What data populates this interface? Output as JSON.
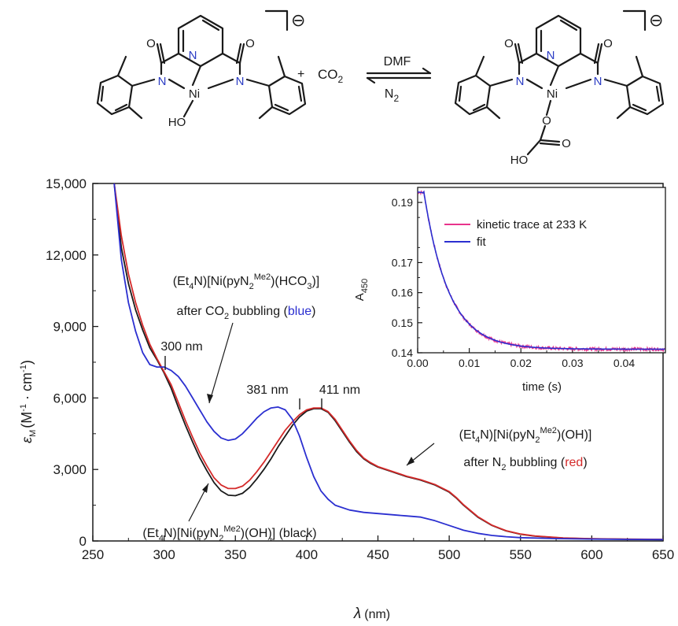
{
  "scheme": {
    "left_label": "HO",
    "left_metal": "Ni",
    "right_metal": "Ni",
    "right_o": "O",
    "right_ho": "HO",
    "right_carbonyl_o": "O",
    "n_label": "N",
    "o_label": "O",
    "charge": "⊖",
    "plus": "+",
    "co2_main": "CO",
    "co2_sub": "2",
    "arrow_top": "DMF",
    "arrow_bottom_main": "N",
    "arrow_bottom_sub": "2"
  },
  "colors": {
    "black": "#1a1a1a",
    "red": "#d42a2a",
    "blue": "#2b2fd0",
    "pink": "#e8348c",
    "nitrogen": "#2b3cc4"
  },
  "annotations": {
    "hco3_line1": "(Et4N)[Ni(pyN2Me2)(HCO3)]",
    "hco3_line2_pre": "after CO",
    "hco3_line2_sub": "2",
    "hco3_line2_mid": " bubbling (",
    "hco3_line2_col": "blue",
    "hco3_line2_end": ")",
    "oh_red_line1": "(Et4N)[Ni(pyN2Me2)(OH)]",
    "oh_red_line2_pre": "after N",
    "oh_red_line2_sub": "2",
    "oh_red_line2_mid": " bubbling (",
    "oh_red_line2_col": "red",
    "oh_red_line2_end": ")",
    "oh_black": "(Et4N)[Ni(pyN2Me2)(OH)] (black)",
    "peak_300": "300 nm",
    "peak_381": "381 nm",
    "peak_411": "411 nm"
  },
  "chart_data": [
    {
      "type": "line",
      "xlabel_symbol": "λ",
      "xlabel_unit": "(nm)",
      "ylabel": "εM (M-1 · cm-1)",
      "xlim": [
        250,
        650
      ],
      "ylim": [
        0,
        15000
      ],
      "xticks": [
        "250",
        "300",
        "350",
        "400",
        "450",
        "500",
        "550",
        "600",
        "650"
      ],
      "yticks": [
        "0",
        "3,000",
        "6,000",
        "9,000",
        "12,000",
        "15,000"
      ],
      "grid": false,
      "series": [
        {
          "color": "black",
          "points": [
            [
              265,
              15000
            ],
            [
              270,
              12300
            ],
            [
              275,
              10800
            ],
            [
              280,
              9700
            ],
            [
              285,
              8850
            ],
            [
              290,
              8100
            ],
            [
              295,
              7600
            ],
            [
              300,
              7050
            ],
            [
              305,
              6400
            ],
            [
              310,
              5600
            ],
            [
              315,
              4850
            ],
            [
              320,
              4150
            ],
            [
              325,
              3500
            ],
            [
              330,
              2950
            ],
            [
              335,
              2450
            ],
            [
              340,
              2100
            ],
            [
              345,
              1920
            ],
            [
              350,
              1900
            ],
            [
              355,
              2000
            ],
            [
              360,
              2250
            ],
            [
              365,
              2600
            ],
            [
              370,
              3000
            ],
            [
              375,
              3450
            ],
            [
              380,
              3950
            ],
            [
              385,
              4400
            ],
            [
              390,
              4850
            ],
            [
              395,
              5200
            ],
            [
              400,
              5450
            ],
            [
              405,
              5550
            ],
            [
              410,
              5550
            ],
            [
              415,
              5400
            ],
            [
              420,
              5050
            ],
            [
              425,
              4600
            ],
            [
              430,
              4150
            ],
            [
              435,
              3750
            ],
            [
              440,
              3450
            ],
            [
              445,
              3250
            ],
            [
              450,
              3100
            ],
            [
              460,
              2900
            ],
            [
              470,
              2700
            ],
            [
              480,
              2550
            ],
            [
              490,
              2350
            ],
            [
              500,
              2050
            ],
            [
              505,
              1800
            ],
            [
              510,
              1500
            ],
            [
              520,
              1000
            ],
            [
              530,
              650
            ],
            [
              540,
              420
            ],
            [
              550,
              280
            ],
            [
              560,
              200
            ],
            [
              580,
              120
            ],
            [
              600,
              90
            ],
            [
              625,
              70
            ],
            [
              650,
              60
            ]
          ]
        },
        {
          "color": "red",
          "points": [
            [
              265,
              15000
            ],
            [
              270,
              12800
            ],
            [
              275,
              11200
            ],
            [
              280,
              10000
            ],
            [
              285,
              9050
            ],
            [
              290,
              8250
            ],
            [
              295,
              7650
            ],
            [
              300,
              7100
            ],
            [
              305,
              6550
            ],
            [
              310,
              5800
            ],
            [
              315,
              5050
            ],
            [
              320,
              4350
            ],
            [
              325,
              3700
            ],
            [
              330,
              3150
            ],
            [
              335,
              2650
            ],
            [
              340,
              2350
            ],
            [
              345,
              2200
            ],
            [
              350,
              2200
            ],
            [
              355,
              2300
            ],
            [
              360,
              2550
            ],
            [
              365,
              2900
            ],
            [
              370,
              3300
            ],
            [
              375,
              3750
            ],
            [
              380,
              4200
            ],
            [
              385,
              4650
            ],
            [
              390,
              5000
            ],
            [
              395,
              5300
            ],
            [
              400,
              5500
            ],
            [
              405,
              5580
            ],
            [
              410,
              5580
            ],
            [
              415,
              5430
            ],
            [
              420,
              5100
            ],
            [
              425,
              4650
            ],
            [
              430,
              4200
            ],
            [
              435,
              3800
            ],
            [
              440,
              3480
            ],
            [
              445,
              3280
            ],
            [
              450,
              3120
            ],
            [
              460,
              2920
            ],
            [
              470,
              2720
            ],
            [
              480,
              2570
            ],
            [
              490,
              2370
            ],
            [
              500,
              2070
            ],
            [
              505,
              1820
            ],
            [
              510,
              1520
            ],
            [
              520,
              1020
            ],
            [
              530,
              660
            ],
            [
              540,
              430
            ],
            [
              550,
              290
            ],
            [
              560,
              210
            ],
            [
              580,
              130
            ],
            [
              600,
              95
            ],
            [
              625,
              75
            ],
            [
              650,
              65
            ]
          ]
        },
        {
          "color": "blue",
          "points": [
            [
              265,
              15000
            ],
            [
              270,
              11800
            ],
            [
              275,
              10000
            ],
            [
              280,
              8800
            ],
            [
              285,
              7900
            ],
            [
              290,
              7400
            ],
            [
              295,
              7300
            ],
            [
              300,
              7300
            ],
            [
              305,
              7150
            ],
            [
              310,
              6900
            ],
            [
              315,
              6500
            ],
            [
              320,
              6000
            ],
            [
              325,
              5500
            ],
            [
              330,
              5000
            ],
            [
              335,
              4600
            ],
            [
              340,
              4320
            ],
            [
              345,
              4220
            ],
            [
              350,
              4280
            ],
            [
              355,
              4500
            ],
            [
              360,
              4820
            ],
            [
              365,
              5150
            ],
            [
              370,
              5420
            ],
            [
              375,
              5580
            ],
            [
              380,
              5620
            ],
            [
              385,
              5500
            ],
            [
              390,
              5100
            ],
            [
              395,
              4400
            ],
            [
              400,
              3500
            ],
            [
              405,
              2700
            ],
            [
              410,
              2100
            ],
            [
              415,
              1750
            ],
            [
              420,
              1500
            ],
            [
              430,
              1300
            ],
            [
              440,
              1200
            ],
            [
              450,
              1150
            ],
            [
              460,
              1100
            ],
            [
              470,
              1050
            ],
            [
              480,
              1000
            ],
            [
              490,
              850
            ],
            [
              500,
              650
            ],
            [
              510,
              450
            ],
            [
              520,
              320
            ],
            [
              530,
              230
            ],
            [
              540,
              180
            ],
            [
              550,
              140
            ],
            [
              575,
              100
            ],
            [
              600,
              80
            ],
            [
              625,
              65
            ],
            [
              650,
              55
            ]
          ]
        }
      ]
    },
    {
      "type": "line",
      "xlabel": "time (s)",
      "ylabel": "A450",
      "xlim": [
        0,
        0.048
      ],
      "ylim": [
        0.14,
        0.195
      ],
      "xticks": [
        "0.00",
        "0.01",
        "0.02",
        "0.03",
        "0.04"
      ],
      "yticks": [
        "0.14",
        "0.15",
        "0.16",
        "0.17",
        "0.19"
      ],
      "legend_position": "top-right",
      "series": [
        {
          "name": "kinetic trace at 233 K",
          "color": "pink",
          "a0": 0.1935,
          "ainf": 0.1412,
          "tau": 0.0048,
          "t_start": 0.0012,
          "noise": 0.0007
        },
        {
          "name": "fit",
          "color": "blue",
          "a0": 0.1935,
          "ainf": 0.1412,
          "tau": 0.0048,
          "t_start": 0.0012,
          "noise": 0
        }
      ]
    }
  ]
}
